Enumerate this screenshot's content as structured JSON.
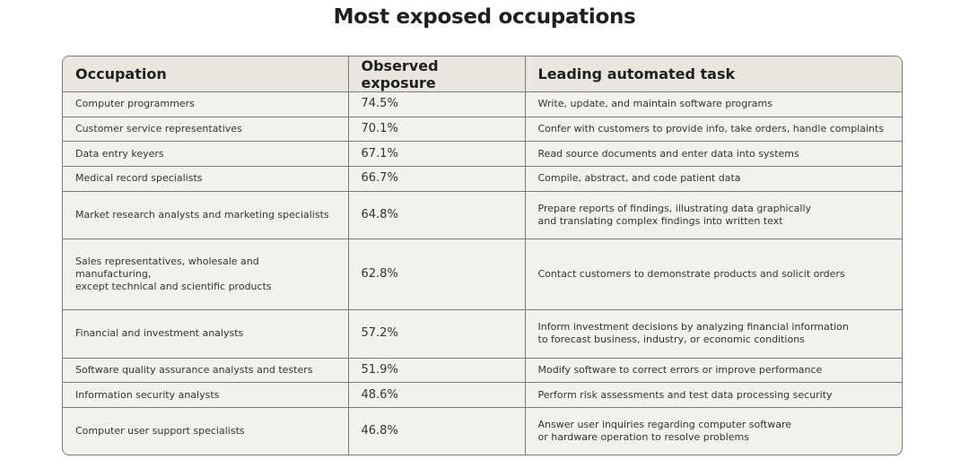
{
  "title": "Most exposed occupations",
  "table": {
    "columns": [
      "Occupation",
      "Observed exposure",
      "Leading automated task"
    ],
    "rows": [
      [
        "Computer programmers",
        "74.5%",
        "Write, update, and maintain software programs"
      ],
      [
        "Customer service representatives",
        "70.1%",
        "Confer with customers to provide info, take orders, handle complaints"
      ],
      [
        "Data entry keyers",
        "67.1%",
        "Read source documents and enter data into systems"
      ],
      [
        "Medical record specialists",
        "66.7%",
        "Compile, abstract, and code patient data"
      ],
      [
        "Market research analysts and marketing specialists",
        "64.8%",
        "Prepare reports of findings, illustrating data graphically\nand translating complex findings into written text"
      ],
      [
        "Sales representatives, wholesale and manufacturing,\nexcept technical and scientific products",
        "62.8%",
        "Contact customers to demonstrate products and solicit orders"
      ],
      [
        "Financial and investment analysts",
        "57.2%",
        "Inform investment decisions by analyzing financial information\nto forecast business, industry, or economic conditions"
      ],
      [
        "Software quality assurance analysts and testers",
        "51.9%",
        "Modify software to correct errors or improve performance"
      ],
      [
        "Information security analysts",
        "48.6%",
        "Perform risk assessments and test data processing security"
      ],
      [
        "Computer user support specialists",
        "46.8%",
        "Answer user inquiries regarding computer software\nor hardware operation to resolve problems"
      ]
    ]
  }
}
